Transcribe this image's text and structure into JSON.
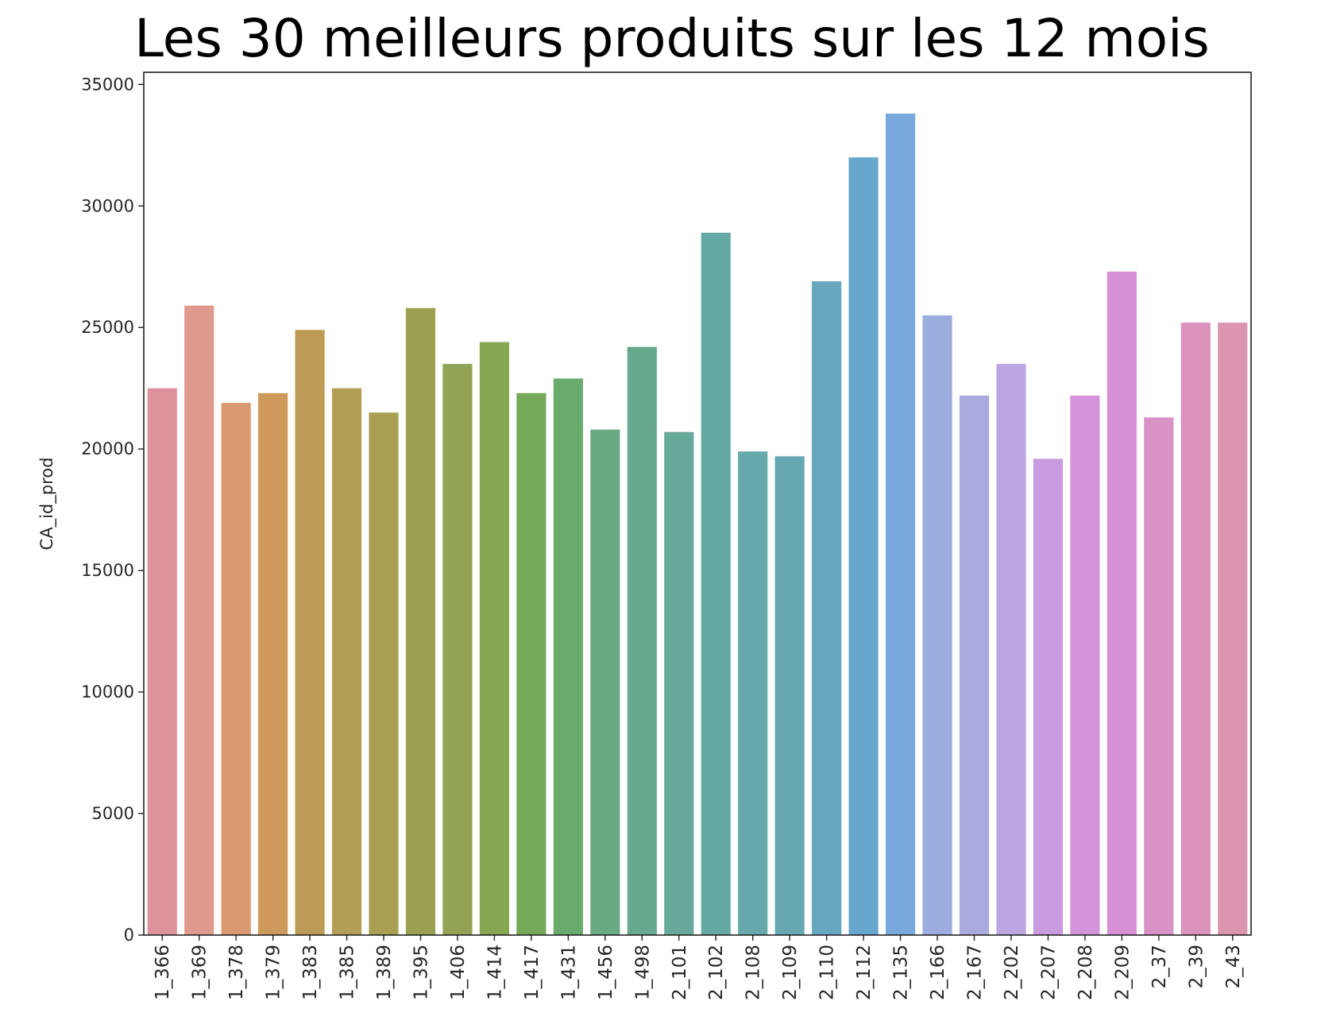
{
  "chart_data": {
    "type": "bar",
    "title": "Les 30 meilleurs produits sur les 12 mois",
    "xlabel": "",
    "ylabel": "CA_id_prod",
    "ylim": [
      0,
      35500
    ],
    "yticks": [
      0,
      5000,
      10000,
      15000,
      20000,
      25000,
      30000,
      35000
    ],
    "grid": false,
    "categories": [
      "1_366",
      "1_369",
      "1_378",
      "1_379",
      "1_383",
      "1_385",
      "1_389",
      "1_395",
      "1_406",
      "1_414",
      "1_417",
      "1_431",
      "1_456",
      "1_498",
      "2_101",
      "2_102",
      "2_108",
      "2_109",
      "2_110",
      "2_112",
      "2_135",
      "2_166",
      "2_167",
      "2_202",
      "2_207",
      "2_208",
      "2_209",
      "2_37",
      "2_39",
      "2_43"
    ],
    "values": [
      22500,
      25900,
      21900,
      22300,
      24900,
      22500,
      21500,
      25800,
      23500,
      24400,
      22300,
      22900,
      20800,
      24200,
      20700,
      28900,
      19900,
      19700,
      26900,
      32000,
      33800,
      25500,
      22200,
      23500,
      19600,
      22200,
      27300,
      21300,
      25200,
      25200
    ],
    "colors": [
      "#dd929c",
      "#de9a8d",
      "#d99a72",
      "#cd9a5c",
      "#be9b55",
      "#b39e55",
      "#a8a050",
      "#9ba150",
      "#93a356",
      "#86a752",
      "#74a957",
      "#69ab6c",
      "#69aa84",
      "#66a98e",
      "#67aa9b",
      "#66a9a3",
      "#68a9ad",
      "#68a8b3",
      "#67a7c0",
      "#68a7cd",
      "#78a8dc",
      "#9badde",
      "#aaaadf",
      "#bba6e1",
      "#c99ae0",
      "#d593dc",
      "#d890d5",
      "#d992c6",
      "#db93bb",
      "#dc95b0"
    ]
  }
}
